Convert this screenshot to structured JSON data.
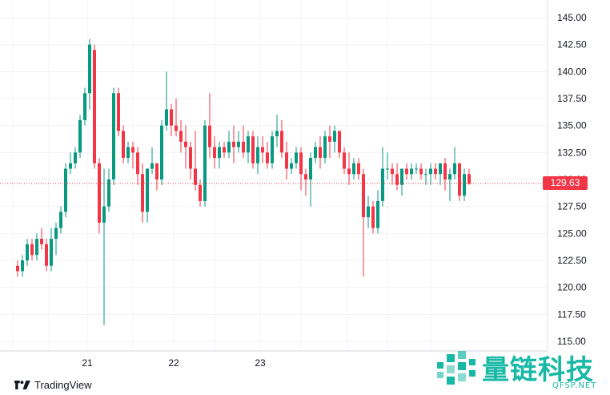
{
  "chart_data": {
    "type": "candlestick",
    "y_ticks": [
      "145.00",
      "142.50",
      "140.00",
      "137.50",
      "135.00",
      "132.50",
      "130.00",
      "127.50",
      "125.00",
      "122.50",
      "120.00",
      "117.50",
      "115.00"
    ],
    "ylim": [
      115,
      145
    ],
    "x_ticks": [
      {
        "label": "21",
        "index": 14.5
      },
      {
        "label": "22",
        "index": 32.5
      },
      {
        "label": "23",
        "index": 50.5
      }
    ],
    "current_price": "129.63",
    "colors": {
      "up": "#089981",
      "down": "#f23645",
      "grid": "#f0f3fa",
      "price_line": "#f23645"
    },
    "candles": [
      [
        122.0,
        122.5,
        121.0,
        121.5
      ],
      [
        121.5,
        123.0,
        121.0,
        122.5
      ],
      [
        122.5,
        124.5,
        122.0,
        124.0
      ],
      [
        124.0,
        124.5,
        122.5,
        123.0
      ],
      [
        123.0,
        125.0,
        122.5,
        124.5
      ],
      [
        124.5,
        125.5,
        123.5,
        124.0
      ],
      [
        124.0,
        124.5,
        121.5,
        122.0
      ],
      [
        122.0,
        125.5,
        121.5,
        124.5
      ],
      [
        124.5,
        126.0,
        123.0,
        125.5
      ],
      [
        125.5,
        127.5,
        125.0,
        127.0
      ],
      [
        127.0,
        131.5,
        126.5,
        131.0
      ],
      [
        131.0,
        132.5,
        130.5,
        131.5
      ],
      [
        131.5,
        133.0,
        131.0,
        132.5
      ],
      [
        132.5,
        136.0,
        132.0,
        135.5
      ],
      [
        135.5,
        138.5,
        135.0,
        138.0
      ],
      [
        138.0,
        143.0,
        136.5,
        142.5
      ],
      [
        142.0,
        142.5,
        131.0,
        131.5
      ],
      [
        131.5,
        132.0,
        125.0,
        126.0
      ],
      [
        126.0,
        131.0,
        116.5,
        127.5
      ],
      [
        127.5,
        131.0,
        127.0,
        130.0
      ],
      [
        130.0,
        138.5,
        129.5,
        138.0
      ],
      [
        138.0,
        138.5,
        134.0,
        134.5
      ],
      [
        134.5,
        135.0,
        131.5,
        132.0
      ],
      [
        132.0,
        133.5,
        131.5,
        133.0
      ],
      [
        133.0,
        133.5,
        131.0,
        132.5
      ],
      [
        132.5,
        133.0,
        129.5,
        130.5
      ],
      [
        130.5,
        131.5,
        126.0,
        127.0
      ],
      [
        127.0,
        131.0,
        126.0,
        131.0
      ],
      [
        131.0,
        133.0,
        130.5,
        131.5
      ],
      [
        131.5,
        131.5,
        129.0,
        130.0
      ],
      [
        130.0,
        135.5,
        129.5,
        135.0
      ],
      [
        135.0,
        140.0,
        134.5,
        136.5
      ],
      [
        136.5,
        137.0,
        134.0,
        135.0
      ],
      [
        135.0,
        137.5,
        134.0,
        134.5
      ],
      [
        134.5,
        135.5,
        132.5,
        133.5
      ],
      [
        133.5,
        135.0,
        131.0,
        133.0
      ],
      [
        133.0,
        133.5,
        130.0,
        131.0
      ],
      [
        131.0,
        134.5,
        129.0,
        129.5
      ],
      [
        129.5,
        130.0,
        127.5,
        128.0
      ],
      [
        128.0,
        135.5,
        127.5,
        135.0
      ],
      [
        135.0,
        138.0,
        132.0,
        133.0
      ],
      [
        133.0,
        134.0,
        131.0,
        132.0
      ],
      [
        132.0,
        133.5,
        131.0,
        133.0
      ],
      [
        133.0,
        133.5,
        132.0,
        132.5
      ],
      [
        132.5,
        134.5,
        132.0,
        133.5
      ],
      [
        133.5,
        135.0,
        131.5,
        133.0
      ],
      [
        133.0,
        134.5,
        132.5,
        133.5
      ],
      [
        133.5,
        135.0,
        132.0,
        132.5
      ],
      [
        132.5,
        134.5,
        131.5,
        134.0
      ],
      [
        134.0,
        134.5,
        131.0,
        131.5
      ],
      [
        131.5,
        134.0,
        130.5,
        133.0
      ],
      [
        133.0,
        134.0,
        131.5,
        132.5
      ],
      [
        132.5,
        133.5,
        131.0,
        131.5
      ],
      [
        131.5,
        134.5,
        131.0,
        134.0
      ],
      [
        134.0,
        136.0,
        133.0,
        134.5
      ],
      [
        134.5,
        135.5,
        132.0,
        132.5
      ],
      [
        132.5,
        133.5,
        130.0,
        131.0
      ],
      [
        131.0,
        132.0,
        130.5,
        131.5
      ],
      [
        131.5,
        133.0,
        131.0,
        132.5
      ],
      [
        132.5,
        133.0,
        129.0,
        130.5
      ],
      [
        130.5,
        131.0,
        128.5,
        130.0
      ],
      [
        130.0,
        132.5,
        127.5,
        132.0
      ],
      [
        132.0,
        133.5,
        131.5,
        133.0
      ],
      [
        133.0,
        134.0,
        131.0,
        132.0
      ],
      [
        132.0,
        134.5,
        131.5,
        134.0
      ],
      [
        134.0,
        135.0,
        132.0,
        133.5
      ],
      [
        133.5,
        135.0,
        132.5,
        134.5
      ],
      [
        134.5,
        134.5,
        132.0,
        132.5
      ],
      [
        132.5,
        133.0,
        130.5,
        131.0
      ],
      [
        131.0,
        132.5,
        129.5,
        130.5
      ],
      [
        130.5,
        132.0,
        130.0,
        131.5
      ],
      [
        131.5,
        132.0,
        130.0,
        130.5
      ],
      [
        130.5,
        131.0,
        121.0,
        126.5
      ],
      [
        126.5,
        128.5,
        125.5,
        127.5
      ],
      [
        127.5,
        128.0,
        125.0,
        125.5
      ],
      [
        125.5,
        129.0,
        125.0,
        128.0
      ],
      [
        128.0,
        133.0,
        127.5,
        131.0
      ],
      [
        131.0,
        132.5,
        130.0,
        131.0
      ],
      [
        131.0,
        131.5,
        129.5,
        130.5
      ],
      [
        130.5,
        131.5,
        129.0,
        129.5
      ],
      [
        129.5,
        131.0,
        128.5,
        131.0
      ],
      [
        131.0,
        131.5,
        130.0,
        130.5
      ],
      [
        130.5,
        131.5,
        130.0,
        131.0
      ],
      [
        131.0,
        131.5,
        130.5,
        131.0
      ],
      [
        131.0,
        131.5,
        130.0,
        130.5
      ],
      [
        130.5,
        131.0,
        129.5,
        130.5
      ],
      [
        130.5,
        131.5,
        129.5,
        131.0
      ],
      [
        131.0,
        131.5,
        130.0,
        130.5
      ],
      [
        130.5,
        131.5,
        129.5,
        131.5
      ],
      [
        131.5,
        132.0,
        129.0,
        130.0
      ],
      [
        130.0,
        131.0,
        128.0,
        130.5
      ],
      [
        130.5,
        133.0,
        130.0,
        131.5
      ],
      [
        131.5,
        131.5,
        128.0,
        128.5
      ],
      [
        128.5,
        131.0,
        128.0,
        130.5
      ],
      [
        130.5,
        131.0,
        129.5,
        129.6
      ]
    ]
  },
  "brand": {
    "name": "TradingView"
  },
  "watermark": {
    "title": "量链科技",
    "subtitle": "QFSP.NET"
  }
}
